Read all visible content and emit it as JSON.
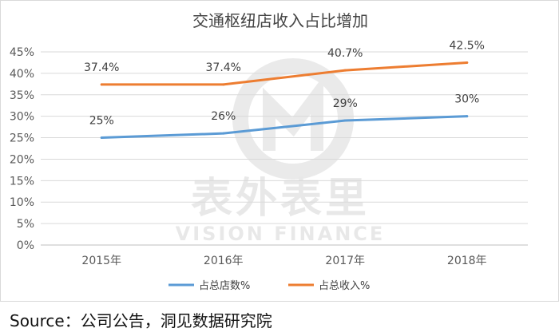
{
  "chart_data": {
    "type": "line",
    "title": "交通枢纽店收入占比增加",
    "categories": [
      "2015年",
      "2016年",
      "2017年",
      "2018年"
    ],
    "ylim": [
      0,
      45
    ],
    "yticks": [
      0,
      5,
      10,
      15,
      20,
      25,
      30,
      35,
      40,
      45
    ],
    "ytick_labels": [
      "0%",
      "5%",
      "10%",
      "15%",
      "20%",
      "25%",
      "30%",
      "35%",
      "40%",
      "45%"
    ],
    "grid": true,
    "legend_position": "bottom",
    "series": [
      {
        "name": "占总店数%",
        "color": "#5b9bd5",
        "values": [
          25,
          26,
          29,
          30
        ],
        "labels": [
          "25%",
          "26%",
          "29%",
          "30%"
        ]
      },
      {
        "name": "占总收入%",
        "color": "#ed7d31",
        "values": [
          37.4,
          37.4,
          40.7,
          42.5
        ],
        "labels": [
          "37.4%",
          "37.4%",
          "40.7%",
          "42.5%"
        ]
      }
    ]
  },
  "watermark": {
    "cn": "表外表里",
    "en": "VISION FINANCE"
  },
  "source": "Source：公司公告，洞见数据研究院"
}
